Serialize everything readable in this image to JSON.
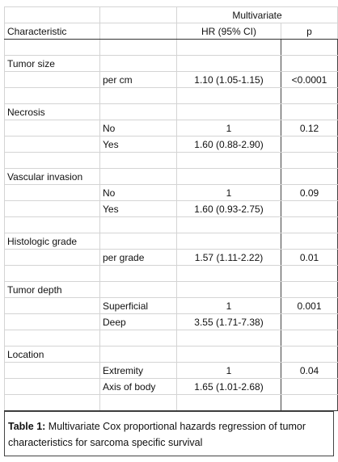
{
  "header": {
    "group": "Multivariate",
    "columns": [
      "Characteristic",
      "HR (95% CI)",
      "p"
    ]
  },
  "groups": [
    {
      "name": "Tumor size",
      "rows": [
        {
          "level": "per cm",
          "hr": "1.10 (1.05-1.15)",
          "p": "<0.0001"
        }
      ]
    },
    {
      "name": "Necrosis",
      "rows": [
        {
          "level": "No",
          "hr": "1",
          "p": "0.12"
        },
        {
          "level": "Yes",
          "hr": "1.60 (0.88-2.90)"
        }
      ]
    },
    {
      "name": "Vascular invasion",
      "rows": [
        {
          "level": "No",
          "hr": "1",
          "p": "0.09"
        },
        {
          "level": "Yes",
          "hr": "1.60 (0.93-2.75)"
        }
      ]
    },
    {
      "name": "Histologic grade",
      "rows": [
        {
          "level": "per grade",
          "hr": "1.57 (1.11-2.22)",
          "p": "0.01"
        }
      ]
    },
    {
      "name": "Tumor depth",
      "rows": [
        {
          "level": "Superficial",
          "hr": "1",
          "p": "0.001"
        },
        {
          "level": "Deep",
          "hr": "3.55 (1.71-7.38)"
        }
      ]
    },
    {
      "name": "Location",
      "rows": [
        {
          "level": "Extremity",
          "hr": "1",
          "p": "0.04"
        },
        {
          "level": "Axis of body",
          "hr": "1.65 (1.01-2.68)"
        }
      ]
    }
  ],
  "caption": {
    "label": "Table 1:",
    "text": "Multivariate Cox proportional hazards regression of tumor characteristics for sarcoma specific survival"
  }
}
